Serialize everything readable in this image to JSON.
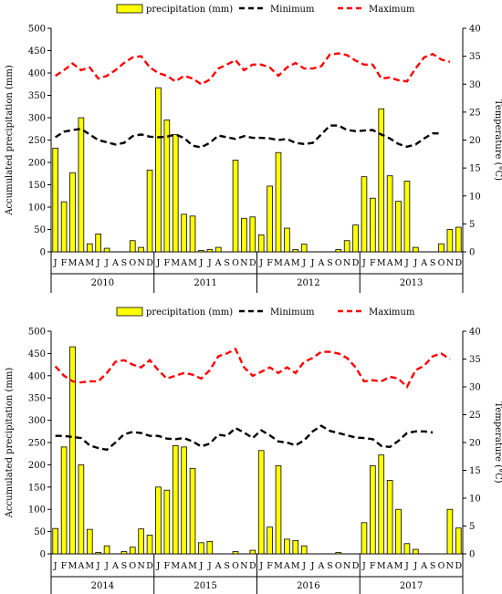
{
  "chart_data": [
    {
      "type": "bar",
      "title": "",
      "legend": [
        "precipitation (mm)",
        "Minimum",
        "Maximum"
      ],
      "legend_placement": "top",
      "ylabel": "Accumulated precipitation (mm)",
      "y2label": "Temperature (°C)",
      "ylim": [
        0,
        500
      ],
      "y2lim": [
        0,
        40
      ],
      "yticks": [
        0,
        50,
        100,
        150,
        200,
        250,
        300,
        350,
        400,
        450,
        500
      ],
      "y2ticks": [
        0,
        5,
        10,
        15,
        20,
        25,
        30,
        35,
        40
      ],
      "years": [
        "2010",
        "2011",
        "2012",
        "2013"
      ],
      "month_labels": [
        "J",
        "F",
        "M",
        "A",
        "M",
        "J",
        "J",
        "A",
        "S",
        "O",
        "N",
        "D"
      ],
      "series": [
        {
          "name": "precipitation (mm)",
          "axis": "left",
          "values": [
            232,
            112,
            177,
            300,
            18,
            40,
            8,
            0,
            0,
            25,
            10,
            183,
            367,
            295,
            262,
            84,
            80,
            3,
            5,
            10,
            0,
            205,
            75,
            78,
            38,
            147,
            222,
            53,
            5,
            17,
            0,
            0,
            0,
            5,
            25,
            60,
            168,
            120,
            320,
            170,
            113,
            158,
            10,
            0,
            0,
            18,
            50,
            55
          ]
        },
        {
          "name": "Minimum",
          "axis": "right",
          "values": [
            20.5,
            21.5,
            21.8,
            22,
            21,
            20,
            19.6,
            19.2,
            19.5,
            20.7,
            21,
            20.6,
            20.5,
            20.6,
            21,
            20.4,
            19,
            18.7,
            19.5,
            20.8,
            20.5,
            20.2,
            20.7,
            20.4,
            20.4,
            20.3,
            20.0,
            20.2,
            19.5,
            19.3,
            19.5,
            21.0,
            22.6,
            22.6,
            21.8,
            21.6,
            21.7,
            21.8,
            21.0,
            20.3,
            19.3,
            18.8,
            19.2,
            20.3,
            21.2,
            21.2,
            null,
            null
          ]
        },
        {
          "name": "Maximum",
          "axis": "right",
          "values": [
            31.5,
            32.5,
            33.7,
            32.5,
            33,
            31,
            31.5,
            32.5,
            33.8,
            34.8,
            35,
            33,
            32,
            31.5,
            30.5,
            31.5,
            31,
            30,
            30.8,
            32.8,
            33.5,
            34.3,
            32.5,
            33.5,
            33.5,
            33,
            31.5,
            33,
            33.8,
            32.8,
            32.8,
            33.2,
            35.3,
            35.5,
            35.2,
            34.2,
            33.5,
            33.5,
            31,
            31.2,
            30.7,
            30.5,
            32.8,
            34.8,
            35.4,
            34.4,
            34,
            null
          ]
        }
      ]
    },
    {
      "type": "bar",
      "title": "",
      "legend": [
        "precipitation (mm)",
        "Minimum",
        "Maximum"
      ],
      "legend_placement": "top",
      "ylabel": "Accumulated precipitation (mm)",
      "y2label": "Temperature (°C)",
      "ylim": [
        0,
        500
      ],
      "y2lim": [
        0,
        40
      ],
      "yticks": [
        0,
        50,
        100,
        150,
        200,
        250,
        300,
        350,
        400,
        450,
        500
      ],
      "y2ticks": [
        0,
        5,
        10,
        15,
        20,
        25,
        30,
        35,
        40
      ],
      "years": [
        "2014",
        "2015",
        "2016",
        "2017"
      ],
      "month_labels": [
        "J",
        "F",
        "M",
        "A",
        "M",
        "J",
        "J",
        "A",
        "S",
        "O",
        "N",
        "D"
      ],
      "series": [
        {
          "name": "precipitation (mm)",
          "axis": "left",
          "values": [
            57,
            240,
            465,
            200,
            55,
            3,
            18,
            0,
            5,
            15,
            56,
            42,
            150,
            143,
            243,
            240,
            192,
            25,
            28,
            0,
            0,
            5,
            0,
            8,
            232,
            60,
            198,
            33,
            30,
            18,
            0,
            0,
            0,
            3,
            0,
            0,
            70,
            198,
            222,
            165,
            100,
            23,
            10,
            0,
            0,
            0,
            100,
            58
          ]
        },
        {
          "name": "Minimum",
          "axis": "right",
          "values": [
            21.2,
            21.2,
            21,
            20.8,
            19.5,
            19,
            18.7,
            20,
            21.5,
            21.9,
            21.7,
            21.2,
            21.2,
            20.7,
            20.6,
            20.8,
            20.2,
            19.3,
            19.8,
            21.4,
            21.2,
            22.6,
            21.8,
            20.8,
            22.2,
            21.3,
            20.2,
            20,
            19.5,
            20.4,
            22,
            23,
            22.1,
            21.7,
            21.3,
            20.9,
            20.8,
            20.6,
            19.4,
            19.2,
            20.3,
            21.7,
            22,
            22,
            21.8,
            null,
            null,
            null
          ]
        },
        {
          "name": "Maximum",
          "axis": "right",
          "values": [
            33.7,
            32,
            31,
            30.8,
            31,
            31,
            32.5,
            34.5,
            34.8,
            34,
            33.5,
            34.8,
            33,
            31.5,
            32,
            32.5,
            32.2,
            31.5,
            33,
            35.5,
            36,
            36.8,
            33.5,
            32,
            32.7,
            33.5,
            32.5,
            33.5,
            32.5,
            34.5,
            35.2,
            36.3,
            36.3,
            36,
            35.2,
            33.5,
            31,
            31.2,
            31,
            31.8,
            31.5,
            30,
            33,
            33.8,
            35.5,
            36,
            35,
            null
          ]
        }
      ]
    }
  ]
}
